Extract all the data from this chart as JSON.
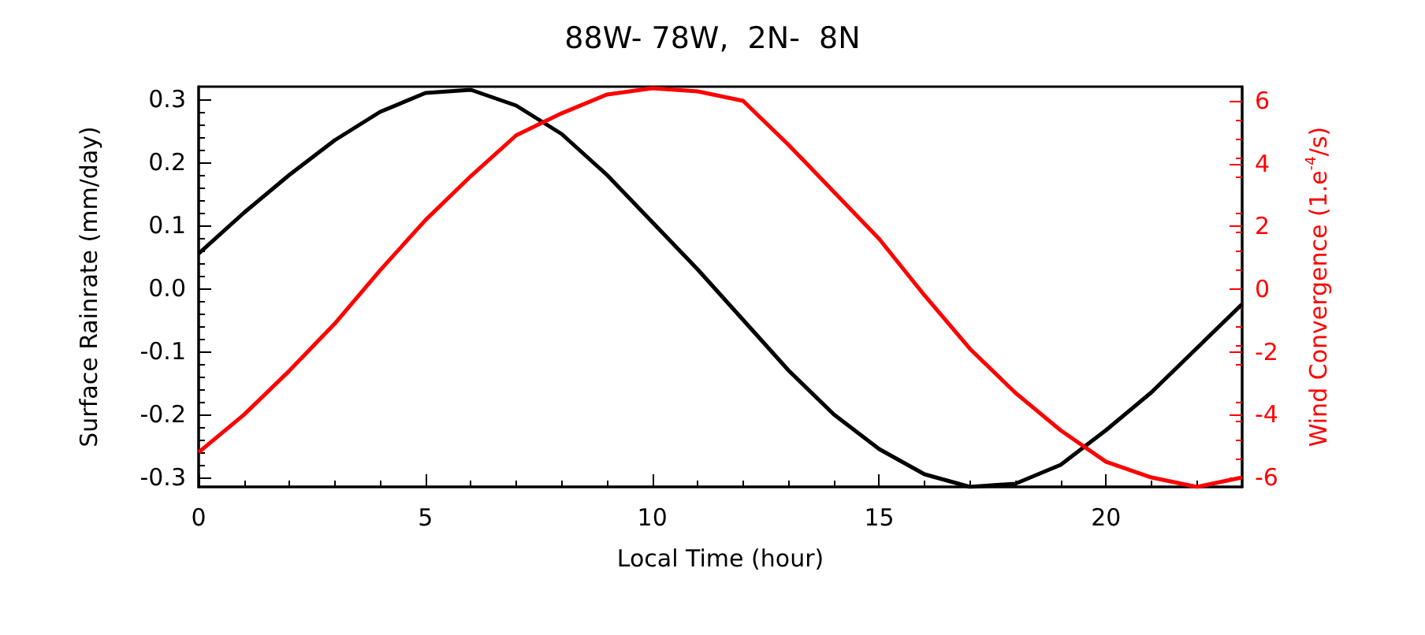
{
  "chart_data": {
    "type": "line",
    "title": "88W- 78W,  2N-  8N",
    "xlabel": "Local Time (hour)",
    "ylabel": "Surface Rainrate (mm/day)",
    "y2label": "Wind Convergence (1.e$^{-4}$/s)",
    "x": [
      0,
      1,
      2,
      3,
      4,
      5,
      6,
      7,
      8,
      9,
      10,
      11,
      12,
      13,
      14,
      15,
      16,
      17,
      18,
      19,
      20,
      21,
      22,
      23
    ],
    "series": [
      {
        "color": "#000000",
        "values": [
          0.055,
          0.12,
          0.18,
          0.235,
          0.28,
          0.31,
          0.315,
          0.29,
          0.245,
          0.18,
          0.105,
          0.03,
          -0.05,
          -0.13,
          -0.2,
          -0.255,
          -0.295,
          -0.315,
          -0.31,
          -0.28,
          -0.225,
          -0.165,
          -0.095,
          -0.025
        ]
      },
      {
        "color": "#ff0000",
        "axis": "y2",
        "values": [
          -5.2,
          -4.0,
          -2.6,
          -1.1,
          0.6,
          2.2,
          3.6,
          4.9,
          5.6,
          6.2,
          6.4,
          6.3,
          6.0,
          4.6,
          3.1,
          1.6,
          -0.2,
          -1.9,
          -3.3,
          -4.5,
          -5.5,
          -6.0,
          -6.3,
          -6.0
        ]
      }
    ],
    "xlim": [
      0,
      23
    ],
    "xticks": [
      0,
      5,
      10,
      15,
      20
    ],
    "ylim": [
      -0.315,
      0.32
    ],
    "yticks": [
      -0.3,
      -0.2,
      -0.1,
      {
        "value": 0,
        "label": "0.0"
      },
      0.1,
      0.2,
      0.3
    ],
    "y2lim": [
      -6.3,
      6.45
    ],
    "y2ticks": [
      -6,
      -4,
      -2,
      0,
      2,
      4,
      6
    ],
    "grid": false,
    "marker": "none",
    "line_style": "solid"
  }
}
